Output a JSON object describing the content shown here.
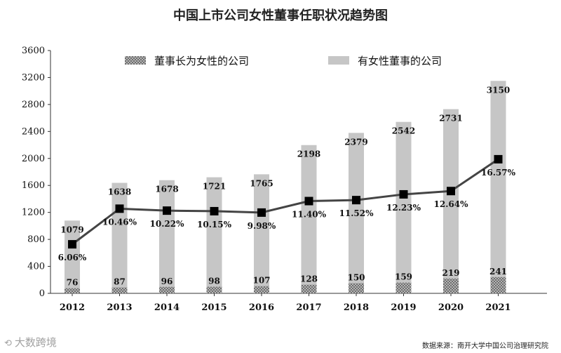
{
  "title": "中国上市公司女性董事任职状况趋势图",
  "source": "数据来源：南开大学中国公司治理研究院",
  "watermark": "大数跨境",
  "colors": {
    "bar_total": "#c6c6c6",
    "bar_chair": "#9a9a9a",
    "line": "#444444",
    "marker": "#000000"
  },
  "chart_data": {
    "type": "bar",
    "categories": [
      "2012",
      "2013",
      "2014",
      "2015",
      "2016",
      "2017",
      "2018",
      "2019",
      "2020",
      "2021"
    ],
    "series": [
      {
        "name": "董事长为女性的公司",
        "values": [
          76,
          87,
          96,
          98,
          107,
          128,
          150,
          159,
          219,
          241
        ]
      },
      {
        "name": "有女性董事的公司",
        "values": [
          1079,
          1638,
          1678,
          1721,
          1765,
          2198,
          2379,
          2542,
          2731,
          3150
        ]
      }
    ],
    "line_series": {
      "values": [
        6.06,
        10.46,
        10.22,
        10.15,
        9.98,
        11.4,
        11.52,
        12.23,
        12.64,
        16.57
      ],
      "labels": [
        "6.06%",
        "10.46%",
        "10.22%",
        "10.15%",
        "9.98%",
        "11.40%",
        "11.52%",
        "12.23%",
        "12.64%",
        "16.57%"
      ]
    },
    "ylim": [
      0,
      3600
    ],
    "yticks": [
      0,
      400,
      800,
      1200,
      1600,
      2000,
      2400,
      2800,
      3200,
      3600
    ],
    "legend_position": "top",
    "grid": false
  }
}
